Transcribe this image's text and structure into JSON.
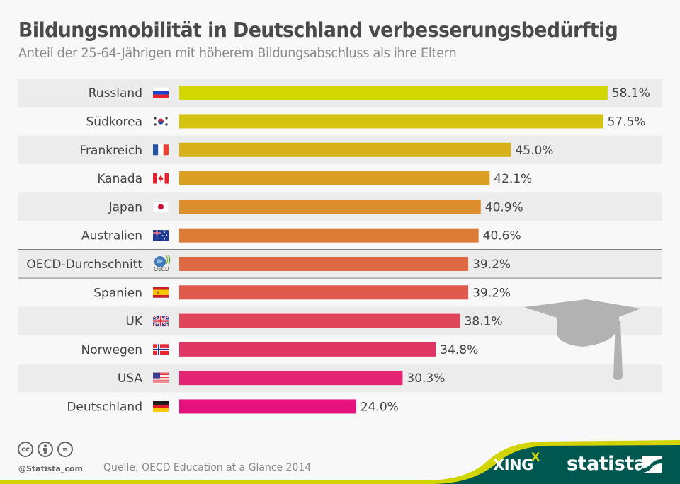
{
  "header": {
    "title": "Bildungsmobilität in Deutschland verbesserungsbedürftig",
    "subtitle": "Anteil der 25-64-Jährigen mit höherem Bildungsabschluss als ihre Eltern"
  },
  "chart_data": {
    "type": "bar",
    "orientation": "horizontal",
    "title": "Bildungsmobilität in Deutschland verbesserungsbedürftig",
    "subtitle": "Anteil der 25-64-Jährigen mit höherem Bildungsabschluss als ihre Eltern",
    "xlabel": "",
    "ylabel": "",
    "unit": "%",
    "xlim": [
      0,
      60
    ],
    "grid": false,
    "categories": [
      "Russland",
      "Südkorea",
      "Frankreich",
      "Kanada",
      "Japan",
      "Australien",
      "OECD-Durchschnitt",
      "Spanien",
      "UK",
      "Norwegen",
      "USA",
      "Deutschland"
    ],
    "values": [
      58.1,
      57.5,
      45.0,
      42.1,
      40.9,
      40.6,
      39.2,
      39.2,
      38.1,
      34.8,
      30.3,
      24.0
    ],
    "value_labels": [
      "58.1%",
      "57.5%",
      "45.0%",
      "42.1%",
      "40.9%",
      "40.6%",
      "39.2%",
      "39.2%",
      "38.1%",
      "34.8%",
      "30.3%",
      "24.0%"
    ],
    "flags": [
      "russia-flag",
      "south-korea-flag",
      "france-flag",
      "canada-flag",
      "japan-flag",
      "australia-flag",
      "oecd-logo",
      "spain-flag",
      "uk-flag",
      "norway-flag",
      "usa-flag",
      "germany-flag"
    ],
    "bar_colors": [
      "#d4d600",
      "#d6c210",
      "#d8b019",
      "#d99f23",
      "#db8e2c",
      "#dc7b36",
      "#dd6a42",
      "#df5a4d",
      "#e04659",
      "#e13566",
      "#e32473",
      "#e4117e"
    ],
    "highlight": "OECD-Durchschnitt"
  },
  "footer": {
    "handle": "@Statista_com",
    "source": "Quelle: OECD Education at a Glance 2014",
    "license_icons": [
      "cc-icon",
      "attribution-icon",
      "no-derivatives-icon"
    ],
    "cc_text": "cc",
    "nd_text": "=",
    "brand_xing": "XING",
    "brand_xing_mark": "X",
    "brand_statista": "statista",
    "colors": {
      "accent": "#d2d400",
      "dark": "#00574f"
    }
  },
  "oecd_logo_text": "OECD"
}
